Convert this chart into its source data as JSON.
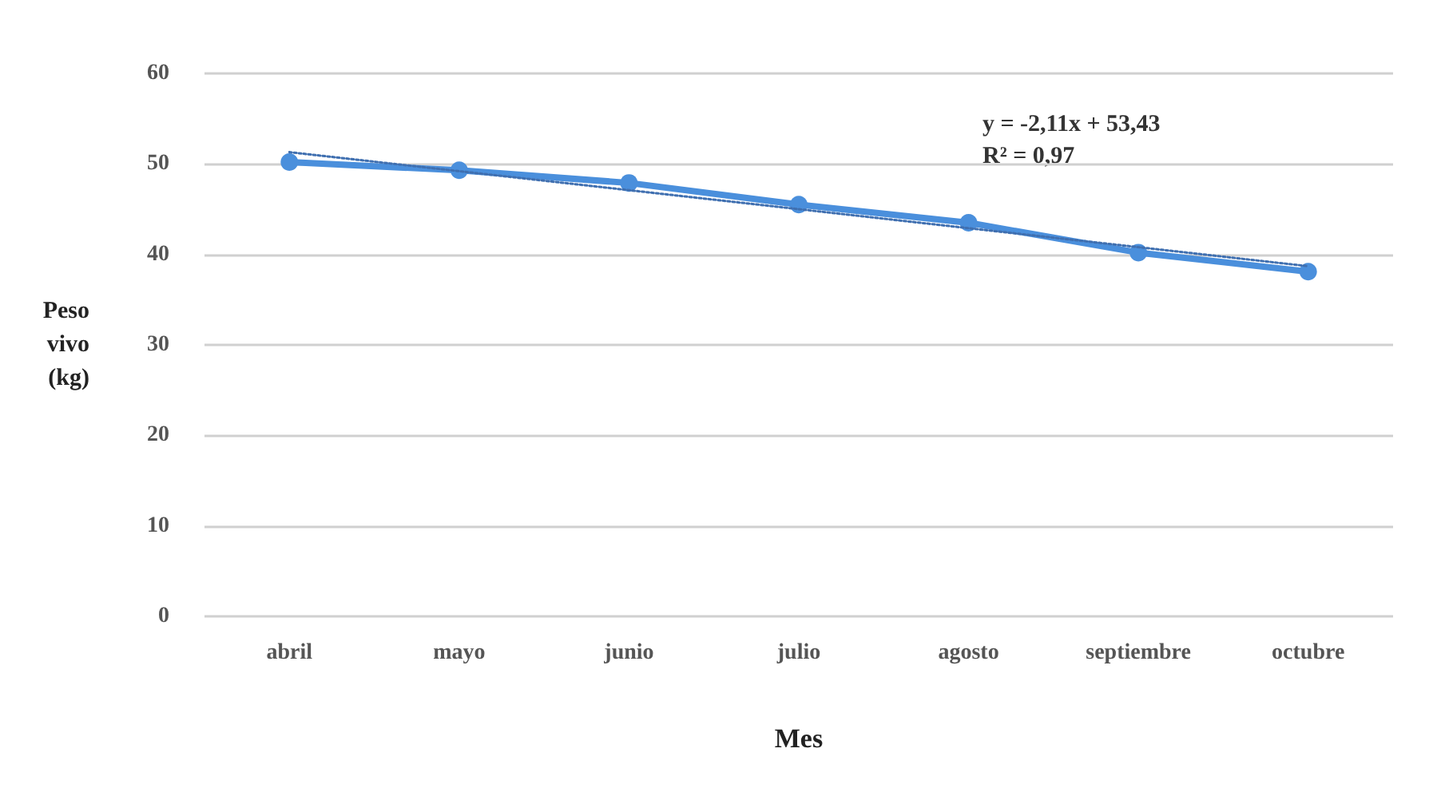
{
  "chart_data": {
    "type": "line",
    "xlabel": "Mes",
    "ylabel": "Peso vivo (kg)",
    "categories": [
      "abril",
      "mayo",
      "junio",
      "julio",
      "agosto",
      "septiembre",
      "octubre"
    ],
    "series": [
      {
        "color": "#4a8fdc",
        "values": [
          50.2,
          49.3,
          47.9,
          45.5,
          43.5,
          40.2,
          38.1
        ],
        "marker": "circle",
        "line_style": "solid"
      },
      {
        "type": "line",
        "color": "#3f6fb0",
        "x": [
          "abril",
          "mayo",
          "junio",
          "julio",
          "agosto",
          "septiembre",
          "octubre"
        ],
        "values": [
          51.3,
          49.2,
          47.1,
          45.0,
          42.9,
          40.8,
          38.7
        ],
        "marker": "none",
        "line_style": "dotted"
      }
    ],
    "annotations": [
      "y = -2,11x + 53,43",
      "R² = 0,97"
    ],
    "ylim": [
      0,
      60
    ],
    "yticks": [
      0,
      10,
      20,
      30,
      40,
      50,
      60
    ],
    "grid": "y"
  }
}
